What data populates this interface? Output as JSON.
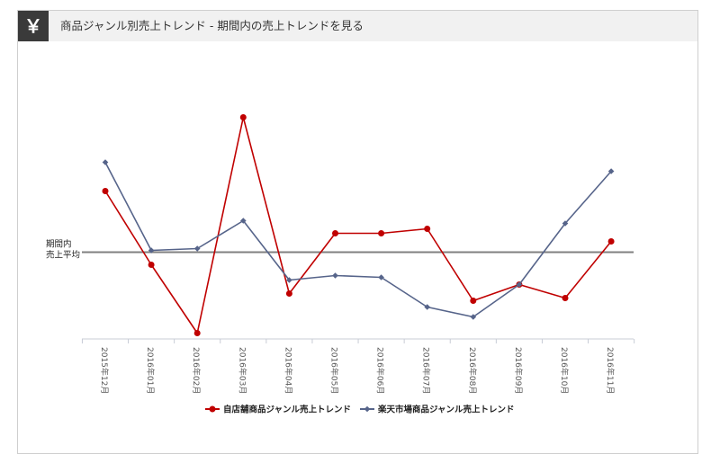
{
  "header": {
    "icon": "yen-icon",
    "icon_glyph": "￥",
    "title": "商品ジャンル別売上トレンド - 期間内の売上トレンドを見る"
  },
  "chart_data": {
    "type": "line",
    "title": "",
    "xlabel": "",
    "ylabel": "",
    "categories": [
      "2015年12月",
      "2016年01月",
      "2016年02月",
      "2016年03月",
      "2016年04月",
      "2016年05月",
      "2016年06月",
      "2016年07月",
      "2016年08月",
      "2016年09月",
      "2016年10月",
      "2016年11月"
    ],
    "reference_line": {
      "label_lines": [
        "期間内",
        "売上平均"
      ],
      "value": 0,
      "color": "#808080"
    },
    "ylim": [
      -100,
      140
    ],
    "grid": false,
    "legend_position": "bottom",
    "series": [
      {
        "name": "自店舗商品ジャンル売上トレンド",
        "color": "#c00000",
        "marker": "circle",
        "values": [
          68,
          -14,
          -90,
          150,
          -46,
          21,
          21,
          26,
          -54,
          -36,
          -51,
          12
        ]
      },
      {
        "name": "楽天市場商品ジャンル売上トレンド",
        "color": "#56648a",
        "marker": "diamond",
        "values": [
          100,
          2,
          4,
          35,
          -31,
          -26,
          -28,
          -61,
          -72,
          -36,
          32,
          90
        ]
      }
    ]
  }
}
